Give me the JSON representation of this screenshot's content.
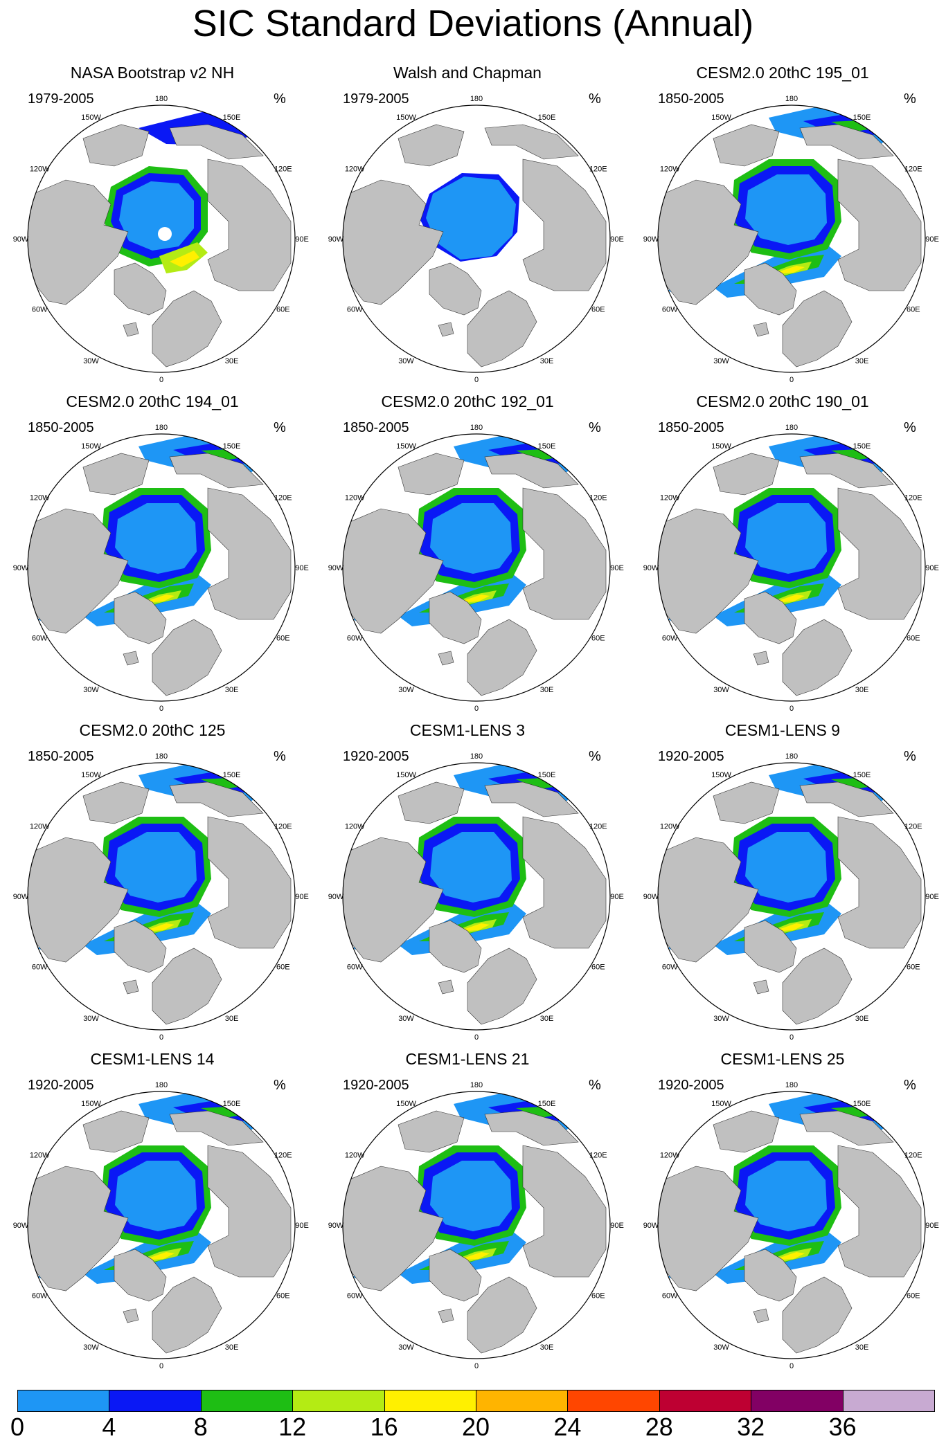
{
  "title": "SIC Standard Deviations (Annual)",
  "units": "%",
  "lon_labels": [
    "180",
    "150E",
    "120E",
    "90E",
    "60E",
    "30E",
    "0",
    "30W",
    "60W",
    "90W",
    "120W",
    "150W"
  ],
  "panels": [
    {
      "title": "NASA Bootstrap v2 NH",
      "period": "1979-2005",
      "pattern": "obs_nasa"
    },
    {
      "title": "Walsh and Chapman",
      "period": "1979-2005",
      "pattern": "obs_walsh"
    },
    {
      "title": "CESM2.0 20thC 195_01",
      "period": "1850-2005",
      "pattern": "model"
    },
    {
      "title": "CESM2.0 20thC 194_01",
      "period": "1850-2005",
      "pattern": "model"
    },
    {
      "title": "CESM2.0 20thC 192_01",
      "period": "1850-2005",
      "pattern": "model"
    },
    {
      "title": "CESM2.0 20thC 190_01",
      "period": "1850-2005",
      "pattern": "model"
    },
    {
      "title": "CESM2.0 20thC 125",
      "period": "1850-2005",
      "pattern": "model"
    },
    {
      "title": "CESM1-LENS 3",
      "period": "1920-2005",
      "pattern": "lens"
    },
    {
      "title": "CESM1-LENS 9",
      "period": "1920-2005",
      "pattern": "lens"
    },
    {
      "title": "CESM1-LENS 14",
      "period": "1920-2005",
      "pattern": "lens"
    },
    {
      "title": "CESM1-LENS 21",
      "period": "1920-2005",
      "pattern": "lens"
    },
    {
      "title": "CESM1-LENS 25",
      "period": "1920-2005",
      "pattern": "lens"
    }
  ],
  "colorbar": {
    "labels": [
      "0",
      "4",
      "8",
      "12",
      "16",
      "20",
      "24",
      "28",
      "32",
      "36"
    ],
    "colors": [
      "#1e96f5",
      "#0a18f5",
      "#1ebe14",
      "#b4eb14",
      "#fff000",
      "#ffb400",
      "#ff4600",
      "#be0032",
      "#820064",
      "#c8aad2"
    ]
  },
  "palette": {
    "land": "#c0c0c0",
    "ocean": "#ffffff"
  }
}
